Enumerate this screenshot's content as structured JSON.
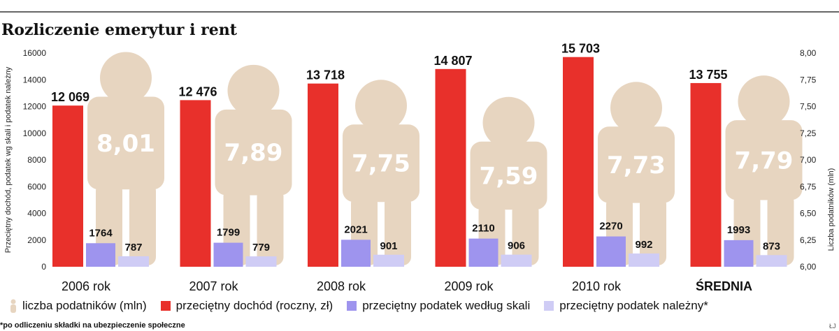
{
  "title": "Rozliczenie emerytur i rent",
  "footnote": "*po odliczeniu składki na ubezpieczenie społeczne",
  "corner_mark": "ŁJ",
  "colors": {
    "income": "#e8302b",
    "tax_scale": "#9e94ee",
    "tax_due": "#cfccf5",
    "figure": "#e7d5c0",
    "highlight": "#e8302b"
  },
  "chart_data": {
    "type": "bar",
    "title": "Rozliczenie emerytur i rent",
    "ylabel": "Przeciętny dochód, podatek wg skali i podatek należny",
    "ylabel_right": "Liczba podatników (mln)",
    "ylim": [
      0,
      16000
    ],
    "yticks": [
      "16000",
      "14000",
      "12000",
      "10000",
      "8000",
      "6000",
      "4000",
      "2000",
      "0"
    ],
    "ylim_right": [
      6.0,
      8.0
    ],
    "yticks_right": [
      "8,00",
      "7,75",
      "7,50",
      "7,25",
      "7,00",
      "6,75",
      "6,50",
      "6,25",
      "6,00"
    ],
    "categories": [
      "2006 rok",
      "2007 rok",
      "2008 rok",
      "2009 rok",
      "2010 rok",
      "ŚREDNIA"
    ],
    "highlight_category": 5,
    "series": [
      {
        "name": "przeciętny dochód (roczny, zł)",
        "values": [
          12069,
          12476,
          13718,
          14807,
          15703,
          13755
        ],
        "labels": [
          "12 069",
          "12 476",
          "13 718",
          "14 807",
          "15 703",
          "13 755"
        ]
      },
      {
        "name": "przeciętny podatek według skali",
        "values": [
          1764,
          1799,
          2021,
          2110,
          2270,
          1993
        ],
        "labels": [
          "1764",
          "1799",
          "2021",
          "2110",
          "2270",
          "1993"
        ]
      },
      {
        "name": "przeciętny podatek należny*",
        "values": [
          787,
          779,
          901,
          906,
          992,
          873
        ],
        "labels": [
          "787",
          "779",
          "901",
          "906",
          "992",
          "873"
        ]
      },
      {
        "name": "liczba podatników (mln)",
        "values": [
          8.01,
          7.89,
          7.75,
          7.59,
          7.73,
          7.79
        ],
        "labels": [
          "8,01",
          "7,89",
          "7,75",
          "7,59",
          "7,73",
          "7,79"
        ]
      }
    ],
    "legend": [
      "liczba podatników (mln)",
      "przeciętny dochód (roczny, zł)",
      "przeciętny podatek według skali",
      "przeciętny podatek należny*"
    ],
    "legend_position": "bottom",
    "grid": false
  }
}
